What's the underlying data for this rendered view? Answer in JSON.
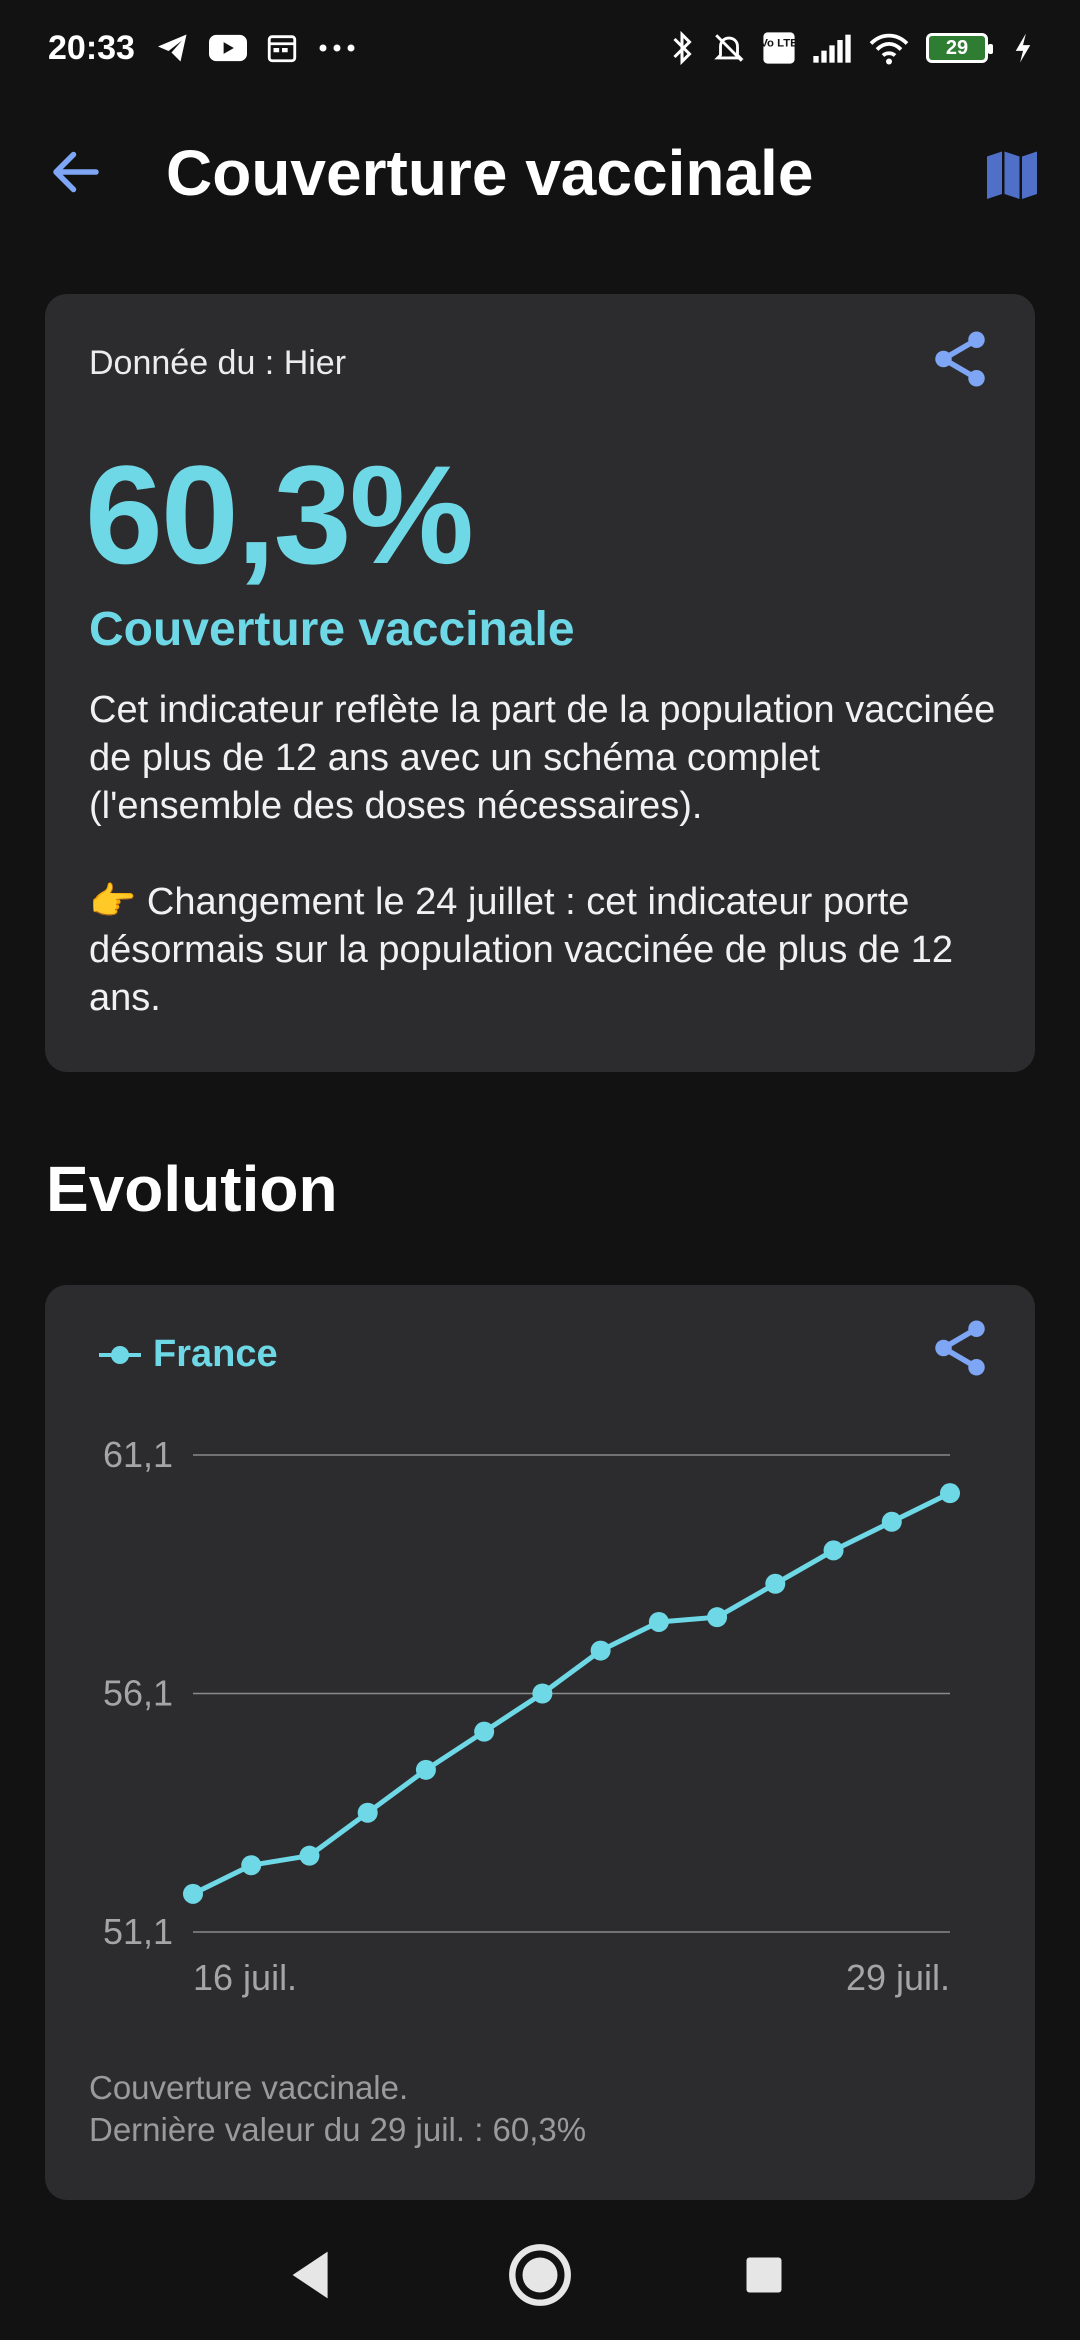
{
  "status_bar": {
    "time": "20:33",
    "left_icons": [
      "telegram-icon",
      "youtube-icon",
      "calendar-icon",
      "more-dots-icon"
    ],
    "right_icons": [
      "bluetooth-icon",
      "bell-muted-icon",
      "volte-icon",
      "signal-icon",
      "wifi-icon"
    ],
    "volte_text": "Vo LTE",
    "battery_level": "29"
  },
  "app_bar": {
    "title": "Couverture vaccinale",
    "back_icon": "arrow-left-icon",
    "map_icon": "map-icon"
  },
  "summary": {
    "date_label": "Donnée du : Hier",
    "value": "60,3%",
    "metric_title": "Couverture vaccinale",
    "description": "Cet indicateur reflète la part de la population vaccinée de plus de 12 ans avec un schéma complet (l'ensemble des doses nécessaires).",
    "change_note": "👉 Changement le 24 juillet : cet indicateur porte désormais sur la population vaccinée de plus de 12 ans.",
    "share_icon": "share-icon"
  },
  "evolution": {
    "section_title": "Evolution",
    "legend_label": "France",
    "caption_line1": "Couverture vaccinale.",
    "caption_line2": "Dernière valeur du 29 juil. : 60,3%",
    "share_icon": "share-icon"
  },
  "chart_data": {
    "type": "line",
    "series": [
      {
        "name": "France",
        "color": "#6fd8e6",
        "values": [
          51.9,
          52.5,
          52.7,
          53.6,
          54.5,
          55.3,
          56.1,
          57.0,
          57.6,
          57.7,
          58.4,
          59.1,
          59.7,
          60.3
        ]
      }
    ],
    "x": [
      "16 juil.",
      "17 juil.",
      "18 juil.",
      "19 juil.",
      "20 juil.",
      "21 juil.",
      "22 juil.",
      "23 juil.",
      "24 juil.",
      "25 juil.",
      "26 juil.",
      "27 juil.",
      "28 juil.",
      "29 juil."
    ],
    "x_tick_labels": [
      "16 juil.",
      "29 juil."
    ],
    "y_ticks": [
      "61,1",
      "56,1",
      "51,1"
    ],
    "ylim": [
      51.1,
      61.1
    ],
    "grid": true,
    "legend_position": "top-left"
  },
  "nav_bar": {
    "icons": [
      "back-triangle-icon",
      "home-circle-icon",
      "recents-square-icon"
    ]
  }
}
